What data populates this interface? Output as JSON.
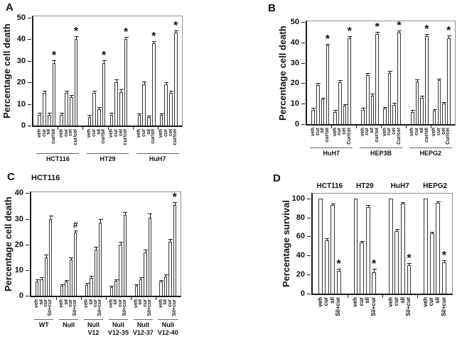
{
  "colors": {
    "bar_fill": "#f7f7f7",
    "bar_border": "#3a3a3a",
    "axis": "#1a1a1a",
    "box_border": "#8f8f8f",
    "text": "#111111",
    "background": "#ffffff"
  },
  "chart_data": [
    {
      "panel": "A",
      "type": "bar",
      "title": "",
      "ylabel": "Percentage cell death",
      "ylim": [
        0,
        50
      ],
      "yticks": [
        0,
        10,
        20,
        30,
        40,
        50
      ],
      "subgroup_gap_after": 3,
      "group_label_position": "bottom",
      "groups": [
        {
          "label": "HCT116",
          "bars": [
            {
              "label": "veh",
              "value": 5,
              "err": 0.5,
              "mark": ""
            },
            {
              "label": "cur",
              "value": 15,
              "err": 0.8,
              "mark": ""
            },
            {
              "label": "sil",
              "value": 5,
              "err": 0.5,
              "mark": ""
            },
            {
              "label": "cur/sil",
              "value": 29,
              "err": 1.0,
              "mark": "*"
            },
            {
              "label": "veh",
              "value": 5,
              "err": 0.5,
              "mark": ""
            },
            {
              "label": "cur",
              "value": 15,
              "err": 0.8,
              "mark": ""
            },
            {
              "label": "cel",
              "value": 13,
              "err": 0.9,
              "mark": ""
            },
            {
              "label": "cur/cel",
              "value": 40,
              "err": 1.0,
              "mark": "*"
            }
          ]
        },
        {
          "label": "HT29",
          "bars": [
            {
              "label": "veh",
              "value": 4,
              "err": 0.5,
              "mark": ""
            },
            {
              "label": "cur",
              "value": 15,
              "err": 0.8,
              "mark": ""
            },
            {
              "label": "sil",
              "value": 7.5,
              "err": 0.6,
              "mark": ""
            },
            {
              "label": "cur/sil",
              "value": 29,
              "err": 1.0,
              "mark": "*"
            },
            {
              "label": "veh",
              "value": 5,
              "err": 0.5,
              "mark": ""
            },
            {
              "label": "cur",
              "value": 20,
              "err": 1.0,
              "mark": ""
            },
            {
              "label": "cel",
              "value": 15.5,
              "err": 0.8,
              "mark": ""
            },
            {
              "label": "cur/cel",
              "value": 40,
              "err": 0.8,
              "mark": "*"
            }
          ]
        },
        {
          "label": "HuH7",
          "bars": [
            {
              "label": "veh",
              "value": 5,
              "err": 0.4,
              "mark": ""
            },
            {
              "label": "cur",
              "value": 19,
              "err": 0.9,
              "mark": ""
            },
            {
              "label": "sil",
              "value": 4,
              "err": 0.4,
              "mark": ""
            },
            {
              "label": "cur/sil",
              "value": 38,
              "err": 0.8,
              "mark": "*"
            },
            {
              "label": "veh",
              "value": 5,
              "err": 0.4,
              "mark": ""
            },
            {
              "label": "cur",
              "value": 19,
              "err": 0.8,
              "mark": ""
            },
            {
              "label": "cel",
              "value": 15,
              "err": 0.7,
              "mark": ""
            },
            {
              "label": "cur/cel",
              "value": 43,
              "err": 0.8,
              "mark": "*"
            }
          ]
        }
      ]
    },
    {
      "panel": "B",
      "type": "bar",
      "title": "",
      "ylabel": "Percentage cell death",
      "ylim": [
        0,
        50
      ],
      "yticks": [
        0,
        10,
        20,
        30,
        40,
        50
      ],
      "subgroup_gap_after": 3,
      "group_label_position": "bottom",
      "groups": [
        {
          "label": "HuH7",
          "bars": [
            {
              "label": "veh",
              "value": 7,
              "err": 0.5,
              "mark": ""
            },
            {
              "label": "cur",
              "value": 19,
              "err": 0.8,
              "mark": ""
            },
            {
              "label": "sil",
              "value": 12,
              "err": 0.6,
              "mark": ""
            },
            {
              "label": "cur/sil",
              "value": 38.5,
              "err": 0.6,
              "mark": "*"
            },
            {
              "label": "veh",
              "value": 6,
              "err": 0.5,
              "mark": ""
            },
            {
              "label": "cur",
              "value": 20.5,
              "err": 0.8,
              "mark": ""
            },
            {
              "label": "cel",
              "value": 9,
              "err": 0.5,
              "mark": ""
            },
            {
              "label": "Cur/cel",
              "value": 42,
              "err": 0.8,
              "mark": "*"
            }
          ]
        },
        {
          "label": "HEP3B",
          "bars": [
            {
              "label": "veh",
              "value": 7,
              "err": 0.5,
              "mark": ""
            },
            {
              "label": "cur",
              "value": 24,
              "err": 0.8,
              "mark": ""
            },
            {
              "label": "sil",
              "value": 14,
              "err": 0.6,
              "mark": ""
            },
            {
              "label": "cur/sil",
              "value": 44,
              "err": 0.7,
              "mark": "*"
            },
            {
              "label": "veh",
              "value": 7.5,
              "err": 0.5,
              "mark": ""
            },
            {
              "label": "cur",
              "value": 25,
              "err": 0.6,
              "mark": ""
            },
            {
              "label": "cel",
              "value": 9.5,
              "err": 0.5,
              "mark": ""
            },
            {
              "label": "Cur/cel",
              "value": 45,
              "err": 0.7,
              "mark": "*"
            }
          ]
        },
        {
          "label": "HEPG2",
          "bars": [
            {
              "label": "veh",
              "value": 6,
              "err": 0.5,
              "mark": ""
            },
            {
              "label": "cur",
              "value": 21,
              "err": 0.6,
              "mark": ""
            },
            {
              "label": "sil",
              "value": 13,
              "err": 0.7,
              "mark": ""
            },
            {
              "label": "cur/sil",
              "value": 43,
              "err": 0.7,
              "mark": "*"
            },
            {
              "label": "veh",
              "value": 6.5,
              "err": 0.6,
              "mark": ""
            },
            {
              "label": "cur",
              "value": 21.5,
              "err": 0.5,
              "mark": ""
            },
            {
              "label": "cel",
              "value": 10,
              "err": 0.5,
              "mark": ""
            },
            {
              "label": "Cur/cel",
              "value": 42,
              "err": 1.0,
              "mark": "*"
            }
          ]
        }
      ]
    },
    {
      "panel": "C",
      "type": "bar",
      "title": "HCT116",
      "ylabel": "Percentage cell death",
      "ylim": [
        0,
        40
      ],
      "yticks": [
        0,
        10,
        20,
        30,
        40
      ],
      "group_label_position": "bottom",
      "groups": [
        {
          "label": "WT",
          "bars": [
            {
              "label": "veh",
              "value": 5.5,
              "err": 0.5,
              "mark": ""
            },
            {
              "label": "sil",
              "value": 6.5,
              "err": 0.4,
              "mark": ""
            },
            {
              "label": "cur",
              "value": 15,
              "err": 0.7,
              "mark": ""
            },
            {
              "label": "Sil+cur",
              "value": 30,
              "err": 1.0,
              "mark": ""
            }
          ]
        },
        {
          "label": "Null",
          "bars": [
            {
              "label": "veh",
              "value": 3.8,
              "err": 0.4,
              "mark": ""
            },
            {
              "label": "sil",
              "value": 5.5,
              "err": 0.4,
              "mark": ""
            },
            {
              "label": "cur",
              "value": 14,
              "err": 0.6,
              "mark": ""
            },
            {
              "label": "Sil+cur",
              "value": 24.5,
              "err": 0.7,
              "mark": "#"
            }
          ]
        },
        {
          "label": "Null\nV12",
          "bars": [
            {
              "label": "veh",
              "value": 4.2,
              "err": 0.4,
              "mark": ""
            },
            {
              "label": "sil",
              "value": 7,
              "err": 0.5,
              "mark": ""
            },
            {
              "label": "cur",
              "value": 18,
              "err": 0.8,
              "mark": ""
            },
            {
              "label": "Sil+cur",
              "value": 28.5,
              "err": 1.0,
              "mark": ""
            }
          ]
        },
        {
          "label": "Null\nV12-35",
          "bars": [
            {
              "label": "veh",
              "value": 3.2,
              "err": 0.4,
              "mark": ""
            },
            {
              "label": "sil",
              "value": 5.8,
              "err": 0.4,
              "mark": ""
            },
            {
              "label": "cur",
              "value": 20,
              "err": 0.8,
              "mark": ""
            },
            {
              "label": "Sil+cur",
              "value": 31.5,
              "err": 1.0,
              "mark": ""
            }
          ]
        },
        {
          "label": "Null\nV12-37",
          "bars": [
            {
              "label": "veh",
              "value": 3.8,
              "err": 0.4,
              "mark": ""
            },
            {
              "label": "sil",
              "value": 6.5,
              "err": 0.4,
              "mark": ""
            },
            {
              "label": "cur",
              "value": 17,
              "err": 0.6,
              "mark": ""
            },
            {
              "label": "Sil+cur",
              "value": 30.5,
              "err": 1.2,
              "mark": ""
            }
          ]
        },
        {
          "label": "Null\nV12-40",
          "bars": [
            {
              "label": "veh",
              "value": 5.5,
              "err": 0.4,
              "mark": ""
            },
            {
              "label": "sil",
              "value": 7.5,
              "err": 0.4,
              "mark": ""
            },
            {
              "label": "cur",
              "value": 21,
              "err": 0.8,
              "mark": ""
            },
            {
              "label": "Sil+cur",
              "value": 35.5,
              "err": 0.8,
              "mark": "*"
            }
          ]
        }
      ]
    },
    {
      "panel": "D",
      "type": "bar",
      "title": "",
      "ylabel": "Percentage survival",
      "ylim": [
        0,
        100
      ],
      "yticks": [
        0,
        20,
        40,
        60,
        80,
        100
      ],
      "group_label_position": "top",
      "groups": [
        {
          "label": "HCT116",
          "bars": [
            {
              "label": "veh",
              "value": 100,
              "err": 0,
              "mark": ""
            },
            {
              "label": "cur",
              "value": 56,
              "err": 1.0,
              "mark": ""
            },
            {
              "label": "sil",
              "value": 93,
              "err": 1.0,
              "mark": ""
            },
            {
              "label": "Sil+cur",
              "value": 23.5,
              "err": 1.5,
              "mark": "*"
            }
          ]
        },
        {
          "label": "HT29",
          "bars": [
            {
              "label": "veh",
              "value": 100,
              "err": 0,
              "mark": ""
            },
            {
              "label": "cur",
              "value": 53.5,
              "err": 1.0,
              "mark": ""
            },
            {
              "label": "sil",
              "value": 91,
              "err": 1.0,
              "mark": ""
            },
            {
              "label": "Sil+cur",
              "value": 22.5,
              "err": 2.5,
              "mark": "*"
            }
          ]
        },
        {
          "label": "HuH7",
          "bars": [
            {
              "label": "veh",
              "value": 100,
              "err": 0,
              "mark": ""
            },
            {
              "label": "cur",
              "value": 65.5,
              "err": 1.2,
              "mark": ""
            },
            {
              "label": "sil",
              "value": 94.5,
              "err": 0.8,
              "mark": ""
            },
            {
              "label": "Sil+cur",
              "value": 30,
              "err": 1.0,
              "mark": "*"
            }
          ]
        },
        {
          "label": "HEPG2",
          "bars": [
            {
              "label": "veh",
              "value": 100,
              "err": 0,
              "mark": ""
            },
            {
              "label": "cur",
              "value": 63,
              "err": 1.2,
              "mark": ""
            },
            {
              "label": "sil",
              "value": 95,
              "err": 0.8,
              "mark": ""
            },
            {
              "label": "Sil+cur",
              "value": 32.5,
              "err": 2.0,
              "mark": "*"
            }
          ]
        }
      ]
    }
  ]
}
